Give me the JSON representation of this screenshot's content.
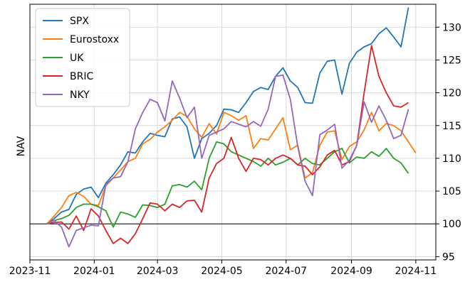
{
  "chart_data": {
    "type": "line",
    "ylabel": "NAV",
    "xlabel": "",
    "x_ticks": [
      "2023-11",
      "2024-01",
      "2024-03",
      "2024-05",
      "2024-07",
      "2024-09",
      "2024-11"
    ],
    "y_ticks": [
      95,
      100,
      105,
      110,
      115,
      120,
      125,
      130
    ],
    "x_range": [
      "2023-11-01",
      "2024-11-20"
    ],
    "ylim": [
      94.5,
      133.5
    ],
    "y_axis_side": "right",
    "grid": true,
    "reference_line": 100,
    "legend_position": "top-left",
    "dates": [
      "2023-11-17",
      "2023-11-24",
      "2023-12-01",
      "2023-12-08",
      "2023-12-15",
      "2023-12-22",
      "2023-12-29",
      "2024-01-05",
      "2024-01-12",
      "2024-01-19",
      "2024-01-26",
      "2024-02-02",
      "2024-02-09",
      "2024-02-16",
      "2024-02-23",
      "2024-03-01",
      "2024-03-08",
      "2024-03-15",
      "2024-03-22",
      "2024-03-29",
      "2024-04-05",
      "2024-04-12",
      "2024-04-19",
      "2024-04-26",
      "2024-05-03",
      "2024-05-10",
      "2024-05-17",
      "2024-05-24",
      "2024-05-31",
      "2024-06-07",
      "2024-06-14",
      "2024-06-21",
      "2024-06-28",
      "2024-07-05",
      "2024-07-12",
      "2024-07-19",
      "2024-07-26",
      "2024-08-02",
      "2024-08-09",
      "2024-08-16",
      "2024-08-23",
      "2024-08-30",
      "2024-09-06",
      "2024-09-13",
      "2024-09-20",
      "2024-09-27",
      "2024-10-04",
      "2024-10-11",
      "2024-10-18",
      "2024-10-25",
      "2024-11-01",
      "2024-11-08"
    ],
    "series": [
      {
        "name": "SPX",
        "color": "#1f77b4",
        "values": [
          100,
          100.8,
          101.8,
          102.2,
          104.5,
          105.3,
          105.6,
          104.0,
          106.2,
          107.5,
          109.0,
          111.0,
          110.8,
          112.5,
          113.8,
          113.5,
          113.3,
          116.0,
          116.3,
          114.8,
          110.0,
          113.0,
          113.8,
          115.0,
          117.5,
          117.4,
          117.0,
          118.5,
          120.2,
          120.8,
          120.5,
          122.5,
          123.8,
          121.8,
          120.8,
          118.5,
          118.4,
          123.0,
          124.8,
          125.0,
          119.8,
          124.5,
          126.2,
          127.0,
          127.5,
          129.0,
          129.9,
          128.5,
          127.0,
          133.0,
          null,
          null
        ]
      },
      {
        "name": "Eurostoxx",
        "color": "#ff7f0e",
        "values": [
          100,
          101.2,
          102.5,
          104.3,
          104.8,
          104.2,
          103.0,
          102.8,
          105.8,
          107.0,
          108.2,
          109.5,
          110.0,
          112.2,
          112.9,
          114.0,
          114.8,
          115.8,
          117.0,
          116.4,
          114.5,
          113.2,
          115.3,
          113.7,
          117.0,
          116.5,
          115.8,
          116.5,
          111.5,
          113.0,
          112.8,
          114.5,
          116.2,
          111.3,
          112.0,
          107.0,
          107.8,
          112.0,
          114.0,
          114.2,
          109.8,
          111.8,
          112.5,
          114.3,
          117.0,
          114.2,
          115.3,
          115.0,
          114.2,
          112.5,
          110.8,
          null
        ]
      },
      {
        "name": "UK",
        "color": "#2ca02c",
        "values": [
          100,
          100.5,
          100.8,
          101.3,
          102.5,
          103.0,
          103.0,
          102.6,
          102.0,
          99.5,
          101.8,
          101.5,
          101.0,
          102.9,
          102.8,
          102.5,
          103.0,
          105.8,
          106.0,
          105.6,
          106.5,
          105.2,
          110.0,
          112.5,
          112.2,
          111.0,
          110.5,
          110.0,
          109.5,
          108.8,
          110.0,
          109.0,
          109.4,
          110.0,
          109.0,
          110.0,
          109.2,
          109.0,
          110.0,
          111.0,
          111.5,
          109.3,
          110.2,
          110.0,
          111.0,
          110.3,
          111.5,
          110.0,
          109.3,
          107.7,
          null,
          null
        ]
      },
      {
        "name": "BRIC",
        "color": "#d62728",
        "values": [
          100,
          100.2,
          100.3,
          99.2,
          101.2,
          99.0,
          102.3,
          101.2,
          99.0,
          97.0,
          97.8,
          97.0,
          98.5,
          100.8,
          103.2,
          103.0,
          102.0,
          103.0,
          102.5,
          103.5,
          103.6,
          101.8,
          107.0,
          109.2,
          110.0,
          113.2,
          110.0,
          108.0,
          110.0,
          109.8,
          109.0,
          110.0,
          110.5,
          110.0,
          109.0,
          108.8,
          107.5,
          108.7,
          110.5,
          111.2,
          109.0,
          109.5,
          112.0,
          120.0,
          127.2,
          122.5,
          120.0,
          118.0,
          117.8,
          118.5,
          null,
          null
        ]
      },
      {
        "name": "NKY",
        "color": "#9467bd",
        "values": [
          100,
          100.5,
          99.5,
          96.5,
          99.0,
          99.4,
          99.8,
          99.7,
          106.0,
          107.0,
          107.2,
          109.5,
          114.5,
          117.0,
          119.0,
          118.5,
          115.7,
          121.8,
          119.2,
          116.2,
          117.8,
          110.0,
          113.5,
          114.0,
          114.5,
          115.6,
          115.2,
          114.8,
          115.6,
          114.9,
          117.5,
          122.5,
          122.7,
          119.0,
          111.8,
          106.5,
          104.3,
          113.6,
          114.3,
          115.2,
          108.5,
          109.7,
          112.0,
          118.6,
          115.5,
          118.0,
          115.8,
          113.0,
          113.5,
          117.5,
          null,
          null
        ]
      }
    ]
  }
}
